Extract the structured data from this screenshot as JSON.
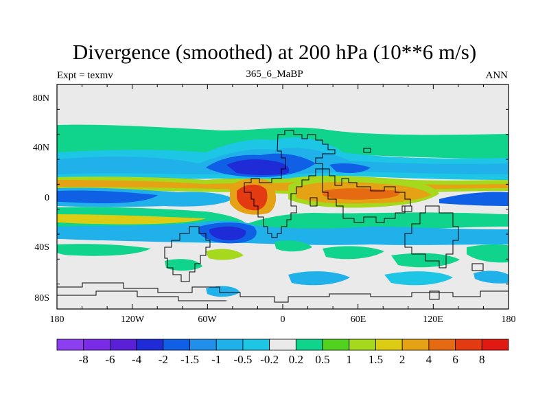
{
  "title": "Divergence (smoothed) at 200 hPa (10**6 m/s)",
  "subtitle_left": "Expt = texmv",
  "subtitle_center": "365_6_MaBP",
  "subtitle_right": "ANN",
  "lat_ticks": [
    "80N",
    "40N",
    "0",
    "40S",
    "80S"
  ],
  "lon_ticks": [
    "180",
    "120W",
    "60W",
    "0",
    "60E",
    "120E",
    "180"
  ],
  "colorbar": {
    "labels": [
      "-8",
      "-6",
      "-4",
      "-2",
      "-1.5",
      "-1",
      "-0.5",
      "-0.2",
      "0.2",
      "0.5",
      "1",
      "1.5",
      "2",
      "4",
      "6",
      "8"
    ],
    "colors": [
      "#8c3ff0",
      "#7a2be6",
      "#5a1fd6",
      "#1e2bd6",
      "#1060e6",
      "#2090ea",
      "#20b0ea",
      "#1ec6e6",
      "#eaeaea",
      "#10d48c",
      "#52d21e",
      "#a6d81e",
      "#dccc14",
      "#e4a214",
      "#e66a12",
      "#e43a12",
      "#e01a12"
    ]
  },
  "colors": {
    "land_outline": "#000000",
    "background": "#eaeaea"
  }
}
